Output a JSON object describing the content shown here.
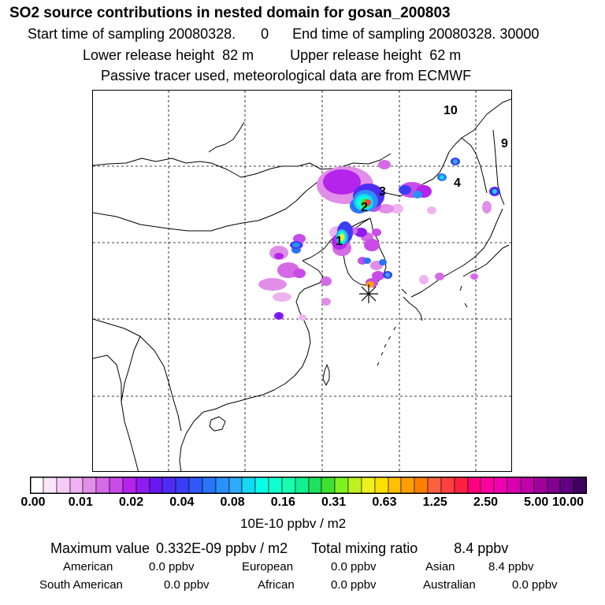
{
  "title": "SO2 source contributions in nested domain for gosan_200803",
  "header": {
    "start_label": "Start time of sampling 20080328.",
    "start_suffix": "0",
    "end_label": "End time of sampling 20080328. 30000",
    "lower_label": "Lower release height",
    "lower_value": "82 m",
    "upper_label": "Upper release height",
    "upper_value": "62 m",
    "note": "Passive tracer used, meteorological data are from ECMWF"
  },
  "map": {
    "labels": [
      "1",
      "2",
      "3",
      "4",
      "9",
      "10"
    ],
    "colors": {
      "land_line": "#000000",
      "grid": "#000000"
    }
  },
  "colorbar": {
    "ticks": [
      "0.00",
      "0.01",
      "0.02",
      "0.04",
      "0.08",
      "0.16",
      "0.31",
      "0.63",
      "1.25",
      "2.50",
      "5.00",
      "10.00"
    ],
    "units": "10E-10 ppbv / m2",
    "colors": [
      "#ffffff",
      "#fbe5fb",
      "#f6ccf6",
      "#f0b3f1",
      "#e08ee8",
      "#d56ae6",
      "#c94be8",
      "#b524ea",
      "#8f1cf0",
      "#6a18f2",
      "#4f2cf4",
      "#3a3df4",
      "#2f58f6",
      "#2a74f8",
      "#2a90fa",
      "#2eacfb",
      "#16d8f0",
      "#08ffe8",
      "#10ffcf",
      "#18ffb0",
      "#10f090",
      "#20e060",
      "#40e030",
      "#80f020",
      "#c0f020",
      "#f0f020",
      "#ffe000",
      "#ffc000",
      "#ffa000",
      "#ff8000",
      "#ff6040",
      "#ff4040",
      "#ff2040",
      "#ff0080",
      "#ff00a0",
      "#f000b0",
      "#d800b0",
      "#c000a8",
      "#a0009c",
      "#800090",
      "#600080",
      "#400060"
    ]
  },
  "stats": {
    "max_label": "Maximum value",
    "max_value": "0.332E-09 ppbv / m2",
    "total_label": "Total mixing ratio",
    "total_value": "8.4 ppbv",
    "regions": [
      {
        "name": "American",
        "value": "0.0 ppbv"
      },
      {
        "name": "European",
        "value": "0.0 ppbv"
      },
      {
        "name": "Asian",
        "value": "8.4 ppbv"
      },
      {
        "name": "South American",
        "value": "0.0 ppbv"
      },
      {
        "name": "African",
        "value": "0.0 ppbv"
      },
      {
        "name": "Australian",
        "value": "0.0 ppbv"
      }
    ]
  }
}
